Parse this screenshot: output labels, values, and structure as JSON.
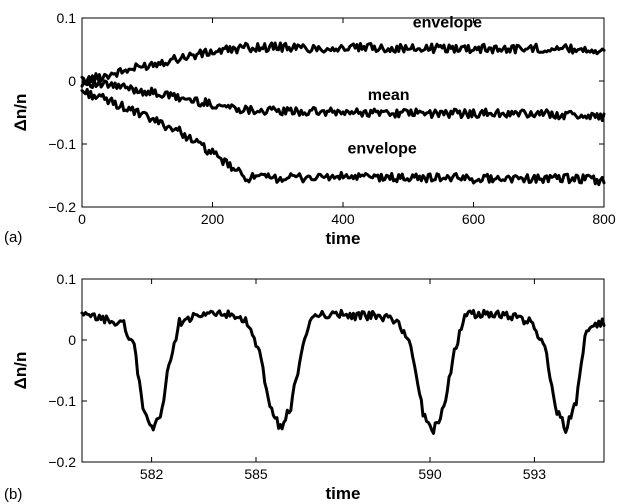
{
  "chart_data": [
    {
      "type": "line",
      "panel_label": "(a)",
      "xlabel": "time",
      "ylabel": "Δn/n",
      "xlim": [
        0,
        800
      ],
      "ylim": [
        -0.2,
        0.1
      ],
      "xticks": [
        0,
        200,
        400,
        600,
        800
      ],
      "yticks": [
        -0.2,
        -0.1,
        0,
        0.1
      ],
      "xtick_labels": [
        "0",
        "200",
        "400",
        "600",
        "800"
      ],
      "ytick_labels": [
        "−0.2",
        "−0.1",
        "0",
        "0.1"
      ],
      "grid": false,
      "annotations": [
        {
          "text": "envelope",
          "x": 560,
          "y": 0.085
        },
        {
          "text": "mean",
          "x": 470,
          "y": -0.03
        },
        {
          "text": "envelope",
          "x": 460,
          "y": -0.115
        }
      ],
      "series": [
        {
          "x": [
            0,
            50,
            100,
            150,
            200,
            250,
            300,
            350,
            400,
            450,
            500,
            550,
            600,
            650,
            700,
            750,
            800
          ],
          "values": [
            0.0,
            0.012,
            0.025,
            0.037,
            0.046,
            0.053,
            0.054,
            0.052,
            0.052,
            0.053,
            0.051,
            0.052,
            0.052,
            0.051,
            0.052,
            0.051,
            0.049
          ]
        },
        {
          "x": [
            0,
            50,
            100,
            150,
            200,
            250,
            300,
            350,
            400,
            450,
            500,
            550,
            600,
            650,
            700,
            750,
            800
          ],
          "values": [
            -0.002,
            -0.008,
            -0.017,
            -0.027,
            -0.037,
            -0.045,
            -0.048,
            -0.049,
            -0.05,
            -0.05,
            -0.051,
            -0.052,
            -0.051,
            -0.052,
            -0.052,
            -0.054,
            -0.057
          ]
        },
        {
          "x": [
            0,
            50,
            100,
            150,
            200,
            250,
            300,
            350,
            400,
            450,
            500,
            550,
            600,
            650,
            700,
            750,
            800
          ],
          "values": [
            -0.016,
            -0.035,
            -0.058,
            -0.08,
            -0.115,
            -0.153,
            -0.154,
            -0.153,
            -0.152,
            -0.153,
            -0.154,
            -0.153,
            -0.155,
            -0.154,
            -0.155,
            -0.155,
            -0.158
          ]
        }
      ]
    },
    {
      "type": "line",
      "panel_label": "(b)",
      "xlabel": "time",
      "ylabel": "Δn/n",
      "xlim": [
        580,
        595
      ],
      "ylim": [
        -0.2,
        0.1
      ],
      "xticks": [
        582,
        585,
        590,
        593
      ],
      "yticks": [
        -0.2,
        -0.1,
        0,
        0.1
      ],
      "xtick_labels": [
        "582",
        "585",
        "590",
        "593"
      ],
      "ytick_labels": [
        "−0.2",
        "−0.1",
        "0",
        "0.1"
      ],
      "grid": false,
      "series": [
        {
          "x": [
            580.0,
            580.6,
            581.2,
            581.5,
            581.75,
            582.0,
            582.25,
            582.5,
            582.8,
            583.4,
            584.0,
            584.7,
            585.1,
            585.4,
            585.7,
            586.0,
            586.3,
            586.6,
            587.2,
            587.8,
            588.4,
            589.1,
            589.5,
            589.8,
            590.1,
            590.4,
            590.7,
            591.0,
            591.6,
            592.2,
            592.9,
            593.3,
            593.6,
            593.9,
            594.2,
            594.5,
            595.0
          ],
          "values": [
            0.04,
            0.035,
            0.025,
            -0.01,
            -0.11,
            -0.145,
            -0.13,
            -0.04,
            0.03,
            0.04,
            0.045,
            0.03,
            -0.02,
            -0.11,
            -0.145,
            -0.11,
            -0.02,
            0.035,
            0.045,
            0.04,
            0.04,
            0.03,
            -0.02,
            -0.12,
            -0.148,
            -0.11,
            -0.02,
            0.04,
            0.045,
            0.04,
            0.03,
            -0.01,
            -0.11,
            -0.145,
            -0.1,
            0.02,
            0.03
          ]
        }
      ]
    }
  ]
}
